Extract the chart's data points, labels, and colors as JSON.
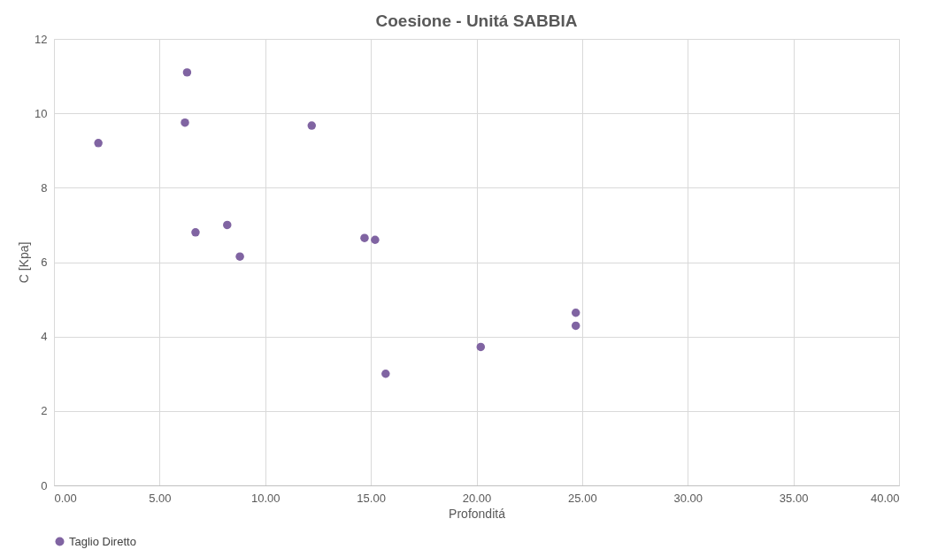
{
  "chart_data": {
    "type": "scatter",
    "title": "Coesione  - Unitá SABBIA",
    "xlabel": "Profonditá",
    "ylabel": "C [Kpa]",
    "x": [
      2.1,
      6.2,
      6.3,
      6.7,
      8.2,
      8.8,
      12.2,
      14.7,
      15.2,
      15.7,
      20.2,
      24.7,
      24.7
    ],
    "series": [
      {
        "name": "Taglio Diretto",
        "color": "#8064a2",
        "values": [
          9.2,
          9.75,
          11.1,
          6.8,
          7.0,
          6.15,
          9.67,
          6.65,
          6.6,
          3.0,
          3.72,
          4.64,
          4.29
        ]
      }
    ],
    "xlim": [
      0,
      40
    ],
    "xticks": [
      {
        "value": 0,
        "label": "0.00"
      },
      {
        "value": 5,
        "label": "5.00"
      },
      {
        "value": 10,
        "label": "10.00"
      },
      {
        "value": 15,
        "label": "15.00"
      },
      {
        "value": 20,
        "label": "20.00"
      },
      {
        "value": 25,
        "label": "25.00"
      },
      {
        "value": 30,
        "label": "30.00"
      },
      {
        "value": 35,
        "label": "35.00"
      },
      {
        "value": 40,
        "label": "40.00"
      }
    ],
    "ylim": [
      0,
      12
    ],
    "yticks": [
      0,
      2,
      4,
      6,
      8,
      10,
      12
    ],
    "grid": true,
    "legend": "bottom",
    "marker": "circle"
  }
}
